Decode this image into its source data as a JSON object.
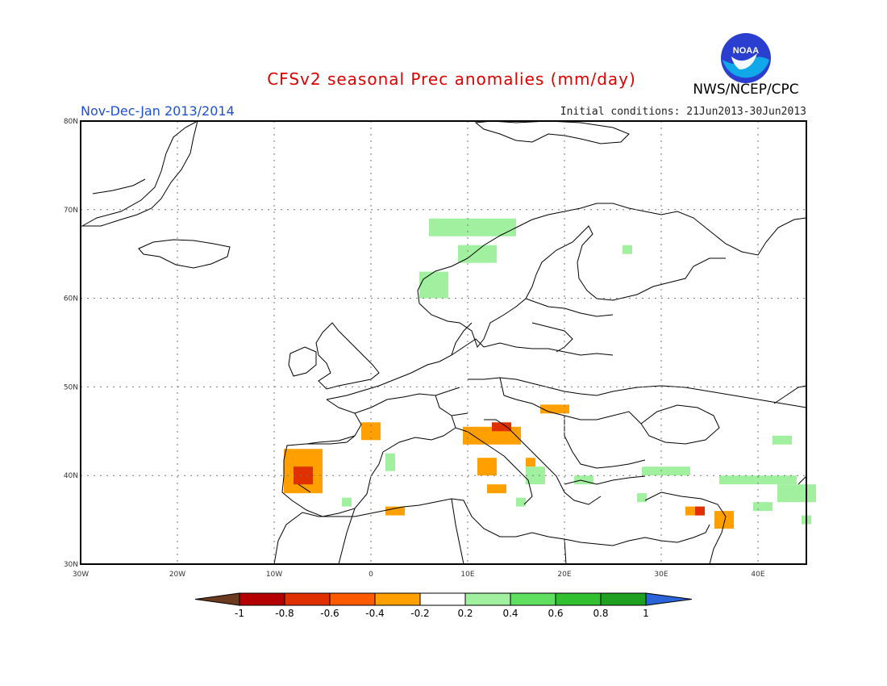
{
  "title": "CFSv2 seasonal Prec anomalies (mm/day)",
  "period": "Nov-Dec-Jan 2013/2014",
  "initial_conditions": "Initial conditions: 21Jun2013-30Jun2013",
  "agency": "NWS/NCEP/CPC",
  "logo_text": "NOAA",
  "map": {
    "lon_min": -30,
    "lon_max": 45,
    "lat_min": 30,
    "lat_max": 80,
    "lon_ticks": [
      {
        "value": -30,
        "label": "30W"
      },
      {
        "value": -20,
        "label": "20W"
      },
      {
        "value": -10,
        "label": "10W"
      },
      {
        "value": 0,
        "label": "0"
      },
      {
        "value": 10,
        "label": "10E"
      },
      {
        "value": 20,
        "label": "20E"
      },
      {
        "value": 30,
        "label": "30E"
      },
      {
        "value": 40,
        "label": "40E"
      }
    ],
    "lat_ticks": [
      {
        "value": 30,
        "label": "30N"
      },
      {
        "value": 40,
        "label": "40N"
      },
      {
        "value": 50,
        "label": "50N"
      },
      {
        "value": 60,
        "label": "60N"
      },
      {
        "value": 70,
        "label": "70N"
      },
      {
        "value": 80,
        "label": "80N"
      }
    ],
    "grid": true
  },
  "colorbar": {
    "labels": [
      "-1",
      "-0.8",
      "-0.6",
      "-0.4",
      "-0.2",
      "0.2",
      "0.4",
      "0.6",
      "0.8",
      "1"
    ],
    "low_arrow_color": "#6b3a1f",
    "high_arrow_color": "#2a64d8",
    "bins": [
      {
        "color": "#b40000"
      },
      {
        "color": "#e03000"
      },
      {
        "color": "#ff5a00"
      },
      {
        "color": "#ff9f00"
      },
      {
        "color": "#ffffff"
      },
      {
        "color": "#a0f0a0"
      },
      {
        "color": "#60e060"
      },
      {
        "color": "#30c030"
      },
      {
        "color": "#20a020"
      }
    ]
  },
  "anomalies": [
    {
      "lon": 6,
      "lat": 67,
      "w": 9,
      "h": 2,
      "value": 0.3
    },
    {
      "lon": 9,
      "lat": 64,
      "w": 4,
      "h": 2,
      "value": 0.3
    },
    {
      "lon": 5,
      "lat": 60,
      "w": 3,
      "h": 3,
      "value": 0.3
    },
    {
      "lon": 26,
      "lat": 65,
      "w": 1,
      "h": 1,
      "value": 0.3
    },
    {
      "lon": -1,
      "lat": 44,
      "w": 2,
      "h": 2,
      "value": -0.3
    },
    {
      "lon": 9.5,
      "lat": 43.5,
      "w": 6,
      "h": 2,
      "value": -0.3
    },
    {
      "lon": 12.5,
      "lat": 45,
      "w": 2,
      "h": 1,
      "value": -0.7
    },
    {
      "lon": 17.5,
      "lat": 47,
      "w": 3,
      "h": 1,
      "value": -0.3
    },
    {
      "lon": -9,
      "lat": 38,
      "w": 4,
      "h": 5,
      "value": -0.3
    },
    {
      "lon": -8,
      "lat": 39,
      "w": 2,
      "h": 2,
      "value": -0.7
    },
    {
      "lon": 11,
      "lat": 40,
      "w": 2,
      "h": 2,
      "value": -0.3
    },
    {
      "lon": 12,
      "lat": 38,
      "w": 2,
      "h": 1,
      "value": -0.3
    },
    {
      "lon": 16,
      "lat": 41,
      "w": 1,
      "h": 1,
      "value": -0.3
    },
    {
      "lon": 1.5,
      "lat": 35.5,
      "w": 2,
      "h": 1,
      "value": -0.3
    },
    {
      "lon": 35.5,
      "lat": 34,
      "w": 2,
      "h": 2,
      "value": -0.3
    },
    {
      "lon": 32.5,
      "lat": 35.5,
      "w": 2,
      "h": 1,
      "value": -0.3
    },
    {
      "lon": 33.5,
      "lat": 35.5,
      "w": 1,
      "h": 1,
      "value": -0.7
    },
    {
      "lon": 1.5,
      "lat": 40.5,
      "w": 1,
      "h": 2,
      "value": 0.3
    },
    {
      "lon": -3,
      "lat": 36.5,
      "w": 1,
      "h": 1,
      "value": 0.3
    },
    {
      "lon": 16,
      "lat": 39,
      "w": 2,
      "h": 2,
      "value": 0.3
    },
    {
      "lon": 21,
      "lat": 39,
      "w": 2,
      "h": 1,
      "value": 0.3
    },
    {
      "lon": 28,
      "lat": 40,
      "w": 5,
      "h": 1,
      "value": 0.3
    },
    {
      "lon": 36,
      "lat": 39,
      "w": 8,
      "h": 1,
      "value": 0.3
    },
    {
      "lon": 42,
      "lat": 37,
      "w": 4,
      "h": 2,
      "value": 0.3
    },
    {
      "lon": 39.5,
      "lat": 36,
      "w": 2,
      "h": 1,
      "value": 0.3
    },
    {
      "lon": 41.5,
      "lat": 43.5,
      "w": 2,
      "h": 1,
      "value": 0.3
    },
    {
      "lon": 27.5,
      "lat": 37,
      "w": 1,
      "h": 1,
      "value": 0.3
    },
    {
      "lon": 15,
      "lat": 36.5,
      "w": 1,
      "h": 1,
      "value": 0.3
    },
    {
      "lon": 44.5,
      "lat": 34.5,
      "w": 1,
      "h": 1,
      "value": 0.3
    }
  ]
}
